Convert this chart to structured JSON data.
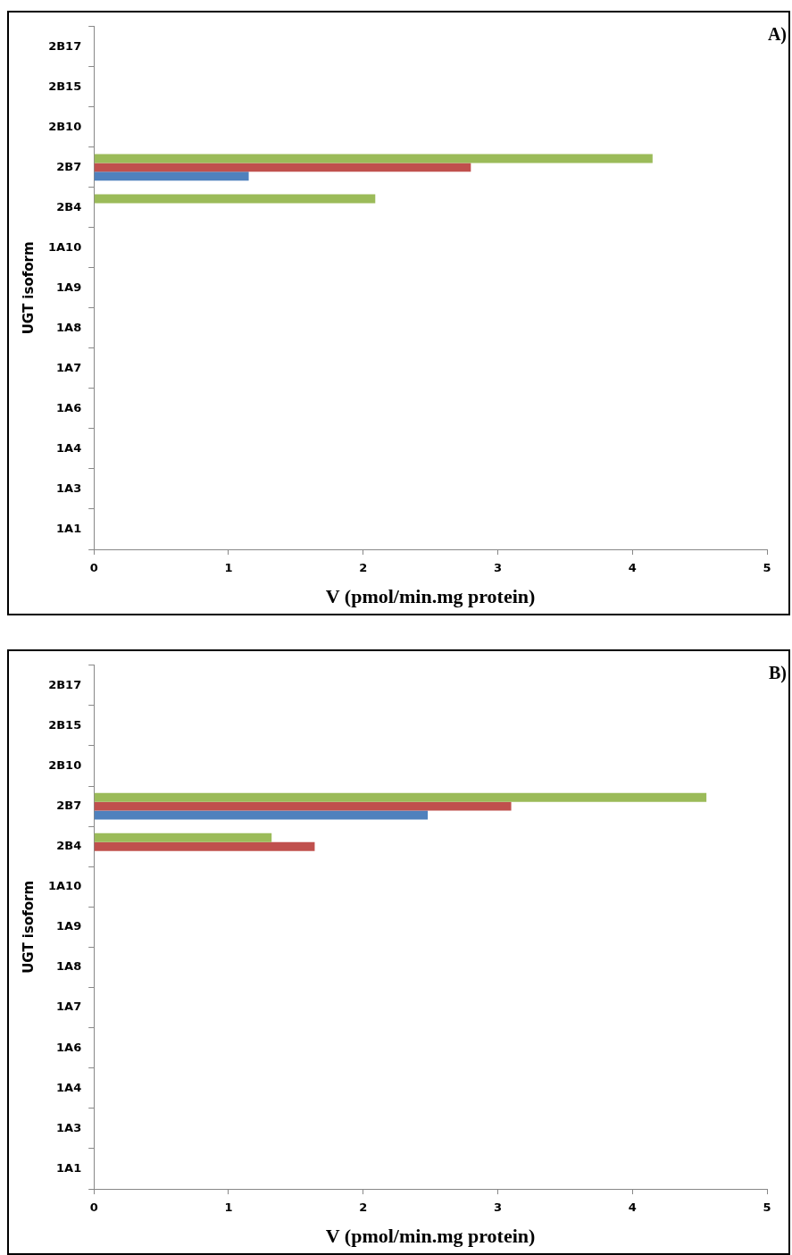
{
  "chart_data": [
    {
      "type": "bar",
      "orientation": "horizontal",
      "categories": [
        "2B17",
        "2B15",
        "2B10",
        "2B7",
        "2B4",
        "1A10",
        "1A9",
        "1A8",
        "1A7",
        "1A6",
        "1A4",
        "1A3",
        "1A1"
      ],
      "series": [
        {
          "color": "#9bbb59",
          "values": [
            0,
            0,
            0,
            4.15,
            2.09,
            0,
            0,
            0,
            0,
            0,
            0,
            0,
            0
          ]
        },
        {
          "color": "#c0504d",
          "values": [
            0,
            0,
            0,
            2.8,
            0,
            0,
            0,
            0,
            0,
            0,
            0,
            0,
            0
          ]
        },
        {
          "color": "#4f81bd",
          "values": [
            0,
            0,
            0,
            1.15,
            0,
            0,
            0,
            0,
            0,
            0,
            0,
            0,
            0
          ]
        }
      ],
      "xlim": [
        0,
        5
      ],
      "xticks": [
        0,
        1,
        2,
        3,
        4,
        5
      ],
      "xlabel": "V (pmol/min.mg protein)",
      "ylabel": "UGT isoform",
      "annotations": [
        "A)"
      ],
      "grid": false,
      "legend": false
    },
    {
      "type": "bar",
      "orientation": "horizontal",
      "categories": [
        "2B17",
        "2B15",
        "2B10",
        "2B7",
        "2B4",
        "1A10",
        "1A9",
        "1A8",
        "1A7",
        "1A6",
        "1A4",
        "1A3",
        "1A1"
      ],
      "series": [
        {
          "color": "#9bbb59",
          "values": [
            0,
            0,
            0,
            4.55,
            1.32,
            0,
            0,
            0,
            0,
            0,
            0,
            0,
            0
          ]
        },
        {
          "color": "#c0504d",
          "values": [
            0,
            0,
            0,
            3.1,
            1.64,
            0,
            0,
            0,
            0,
            0,
            0,
            0,
            0
          ]
        },
        {
          "color": "#4f81bd",
          "values": [
            0,
            0,
            0,
            2.48,
            0,
            0,
            0,
            0,
            0,
            0,
            0,
            0,
            0
          ]
        }
      ],
      "xlim": [
        0,
        5
      ],
      "xticks": [
        0,
        1,
        2,
        3,
        4,
        5
      ],
      "xlabel": "V (pmol/min.mg protein)",
      "ylabel": "UGT isoform",
      "annotations": [
        "B)"
      ],
      "grid": false,
      "legend": false
    }
  ]
}
